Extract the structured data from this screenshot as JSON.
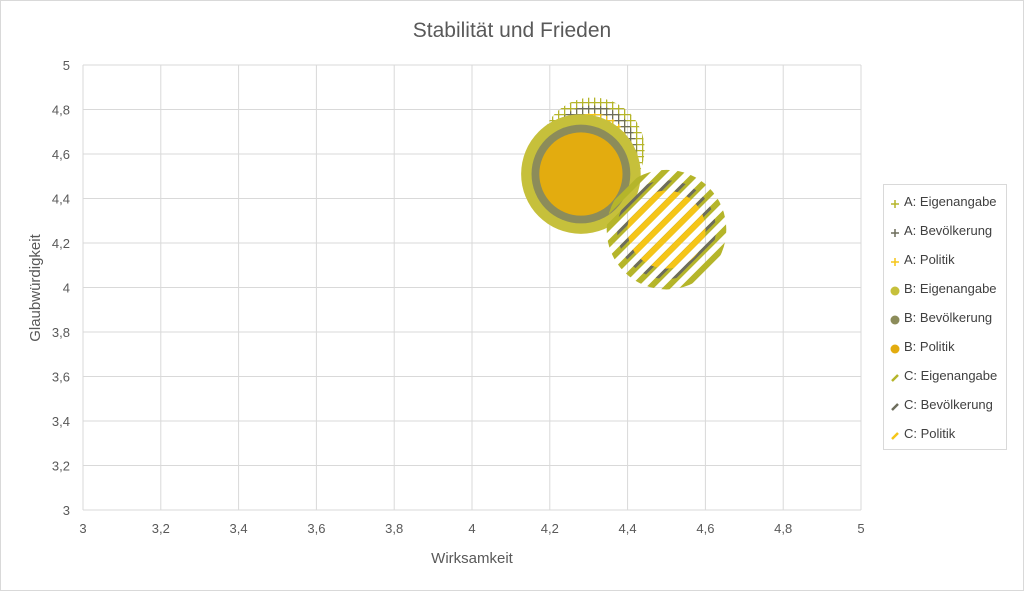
{
  "chart_data": {
    "type": "bubble",
    "title": "Stabilität und Frieden",
    "xlabel": "Wirksamkeit",
    "ylabel": "Glaubwürdigkeit",
    "xlim": [
      3,
      5
    ],
    "ylim": [
      3,
      5
    ],
    "x_ticks": [
      "3",
      "3,2",
      "3,4",
      "3,6",
      "3,8",
      "4",
      "4,2",
      "4,4",
      "4,6",
      "4,8",
      "5"
    ],
    "y_ticks": [
      "3",
      "3,2",
      "3,4",
      "3,6",
      "3,8",
      "4",
      "4,2",
      "4,4",
      "4,6",
      "4,8",
      "5"
    ],
    "grid": true,
    "legend_position": "right",
    "series": [
      {
        "name": "A: Eigenangabe",
        "x": 4.31,
        "y": 4.62,
        "size": 1.0,
        "color": "#b5b52a",
        "pattern": "grid"
      },
      {
        "name": "A: Bevölkerung",
        "x": 4.31,
        "y": 4.62,
        "size": 0.85,
        "color": "#6d6d5c",
        "pattern": "grid-dark"
      },
      {
        "name": "A: Politik",
        "x": 4.31,
        "y": 4.62,
        "size": 0.7,
        "color": "#f5c518",
        "pattern": "grid-yellow"
      },
      {
        "name": "B: Eigenangabe",
        "x": 4.28,
        "y": 4.51,
        "size": 1.15,
        "color": "#c6c03b",
        "pattern": "solid"
      },
      {
        "name": "B: Bevölkerung",
        "x": 4.28,
        "y": 4.51,
        "size": 0.95,
        "color": "#8c8c5a",
        "pattern": "solid"
      },
      {
        "name": "B: Politik",
        "x": 4.28,
        "y": 4.51,
        "size": 0.8,
        "color": "#e3ac0f",
        "pattern": "solid"
      },
      {
        "name": "C: Eigenangabe",
        "x": 4.5,
        "y": 4.26,
        "size": 1.15,
        "color": "#b5b52a",
        "pattern": "diagonal"
      },
      {
        "name": "C: Bevölkerung",
        "x": 4.5,
        "y": 4.26,
        "size": 0.95,
        "color": "#6d6d5c",
        "pattern": "diagonal-dark"
      },
      {
        "name": "C: Politik",
        "x": 4.5,
        "y": 4.26,
        "size": 0.75,
        "color": "#f5c518",
        "pattern": "diagonal-yellow"
      }
    ]
  }
}
